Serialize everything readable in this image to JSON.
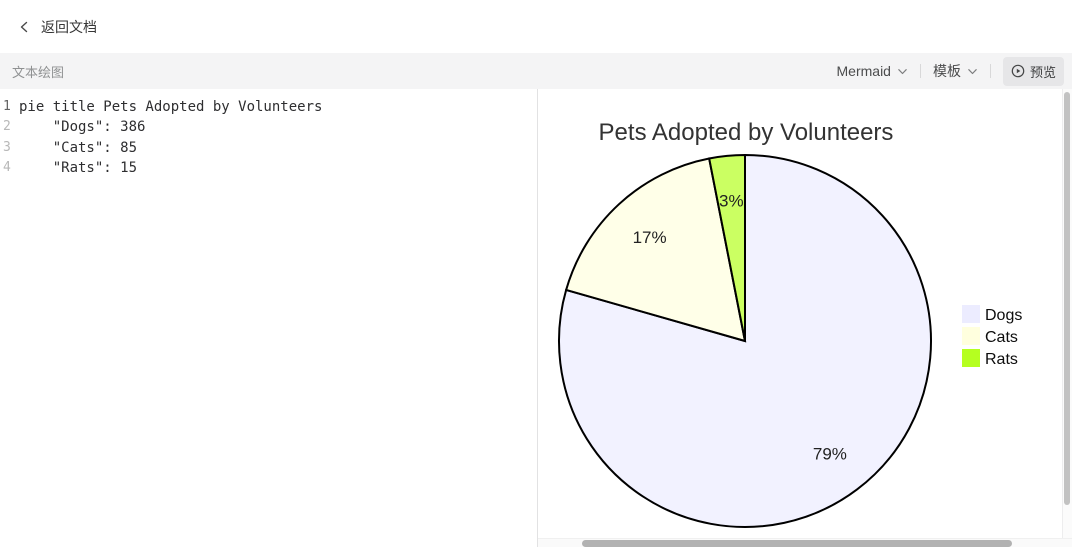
{
  "header": {
    "back_label": "返回文档"
  },
  "toolbar": {
    "title": "文本绘图",
    "diagram_type": "Mermaid",
    "template_label": "模板",
    "preview_label": "预览"
  },
  "icons": {
    "back": "chevron-left",
    "diagram_type_dropdown": "chevron-down",
    "template_dropdown": "chevron-down",
    "preview": "play-circle"
  },
  "editor": {
    "lines": [
      {
        "number": "1",
        "code": "pie title Pets Adopted by Volunteers"
      },
      {
        "number": "2",
        "code": "    \"Dogs\": 386"
      },
      {
        "number": "3",
        "code": "    \"Cats\": 85"
      },
      {
        "number": "4",
        "code": "    \"Rats\": 15"
      }
    ]
  },
  "chart_data": {
    "type": "pie",
    "title": "Pets Adopted by Volunteers",
    "categories": [
      "Dogs",
      "Cats",
      "Rats"
    ],
    "values": [
      386,
      85,
      15
    ],
    "percent_labels": [
      "79%",
      "17%",
      "3%"
    ],
    "colors": [
      "#ECECFF",
      "#FFFFDE",
      "#B5FF20"
    ],
    "slice_fill_opacity": 0.7,
    "stroke_color": "#000000",
    "title_color": "#333333",
    "legend_position": "right",
    "start_angle_deg": 0,
    "direction": "clockwise"
  }
}
